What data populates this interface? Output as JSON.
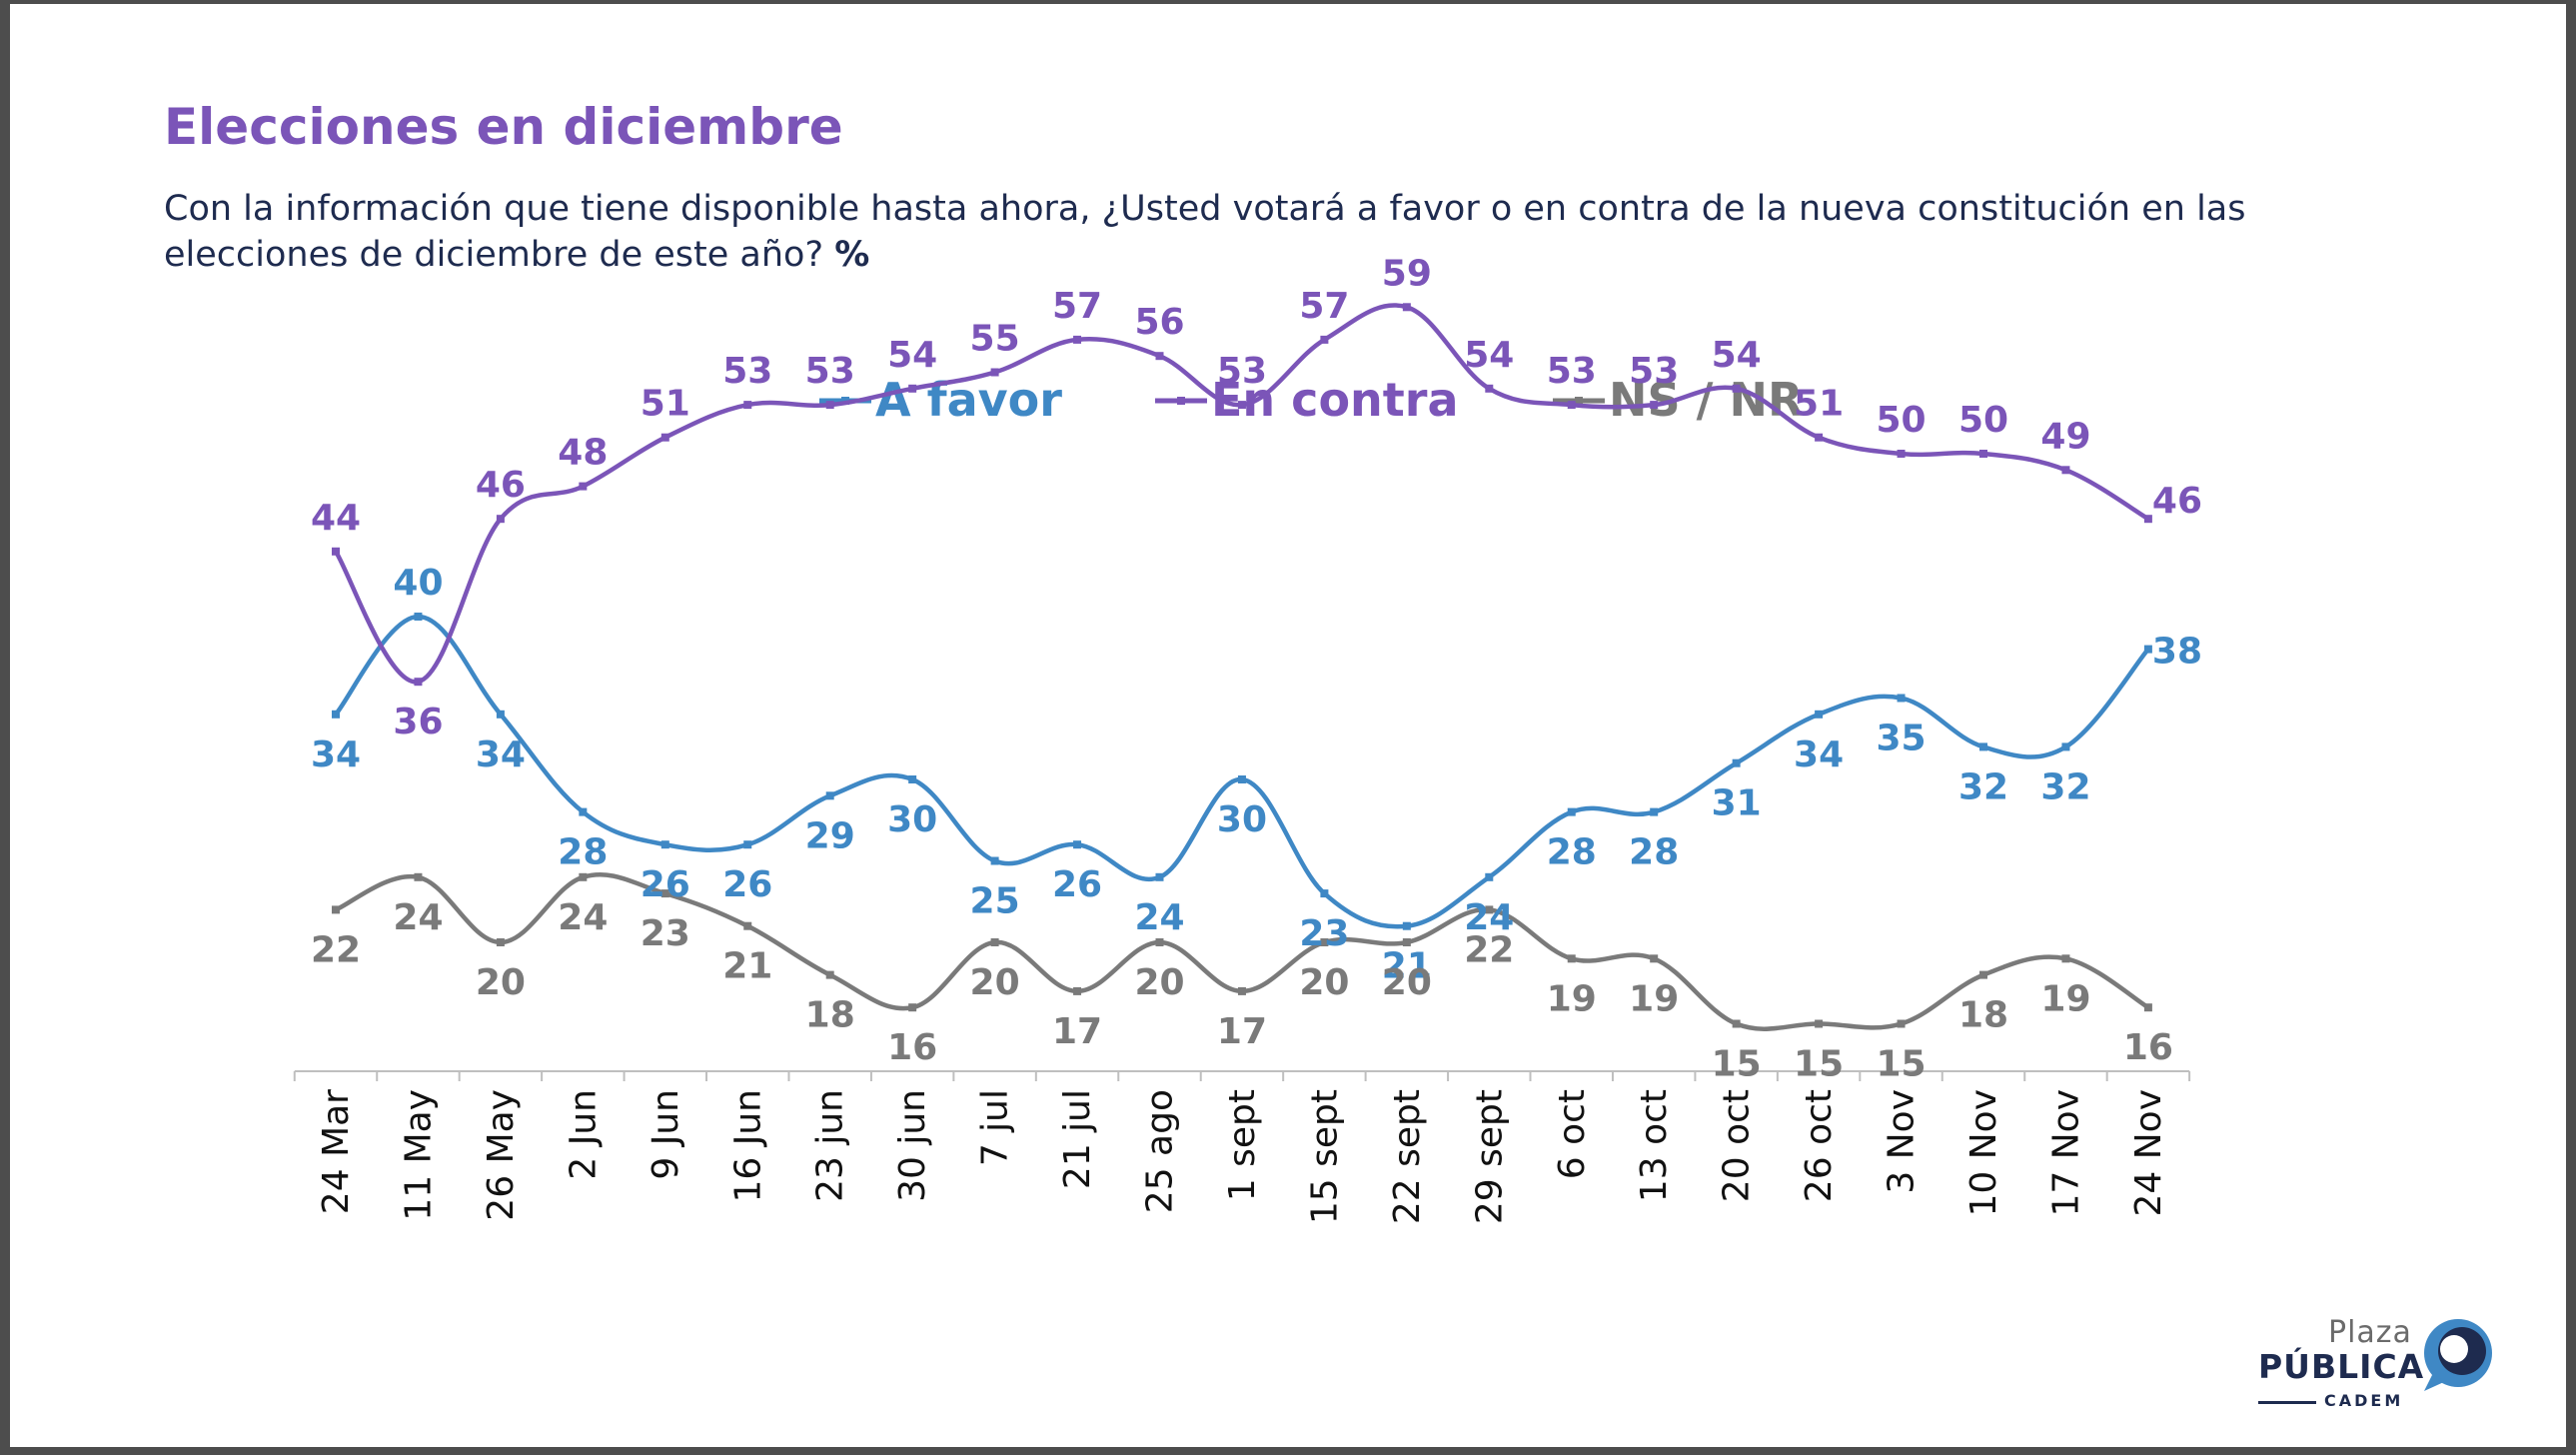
{
  "header": {
    "title": "Elecciones en diciembre",
    "subtitle": "Con la información que tiene disponible hasta ahora, ¿Usted votará a favor o en contra de la nueva constitución en las elecciones de diciembre de este año?",
    "unit": "%"
  },
  "logo": {
    "top": "Plaza",
    "main": "PÚBLICA",
    "bottom": "CADEM"
  },
  "chart_data": {
    "type": "line",
    "categories": [
      "24 Mar",
      "11 May",
      "26 May",
      "2 Jun",
      "9 Jun",
      "16 Jun",
      "23 jun",
      "30 jun",
      "7 jul",
      "21 jul",
      "25 ago",
      "1 sept",
      "15 sept",
      "22 sept",
      "29 sept",
      "6 oct",
      "13 oct",
      "20 oct",
      "26 oct",
      "3 Nov",
      "10 Nov",
      "17 Nov",
      "24 Nov"
    ],
    "series": [
      {
        "name": "A favor",
        "color": "#3f88c5",
        "values": [
          34,
          40,
          34,
          28,
          26,
          26,
          29,
          30,
          25,
          26,
          24,
          30,
          23,
          21,
          24,
          28,
          28,
          31,
          34,
          35,
          32,
          32,
          38
        ]
      },
      {
        "name": "En contra",
        "color": "#7b55b8",
        "values": [
          44,
          36,
          46,
          48,
          51,
          53,
          53,
          54,
          55,
          57,
          56,
          53,
          57,
          59,
          54,
          53,
          53,
          54,
          51,
          50,
          50,
          49,
          46
        ]
      },
      {
        "name": "NS / NR",
        "color": "#7a7a7a",
        "values": [
          22,
          24,
          20,
          24,
          23,
          21,
          18,
          16,
          20,
          17,
          20,
          17,
          20,
          20,
          22,
          19,
          19,
          15,
          15,
          15,
          18,
          19,
          16
        ]
      }
    ],
    "legend_position": "top-center",
    "grid": false,
    "xlabel": "",
    "ylabel": ""
  }
}
